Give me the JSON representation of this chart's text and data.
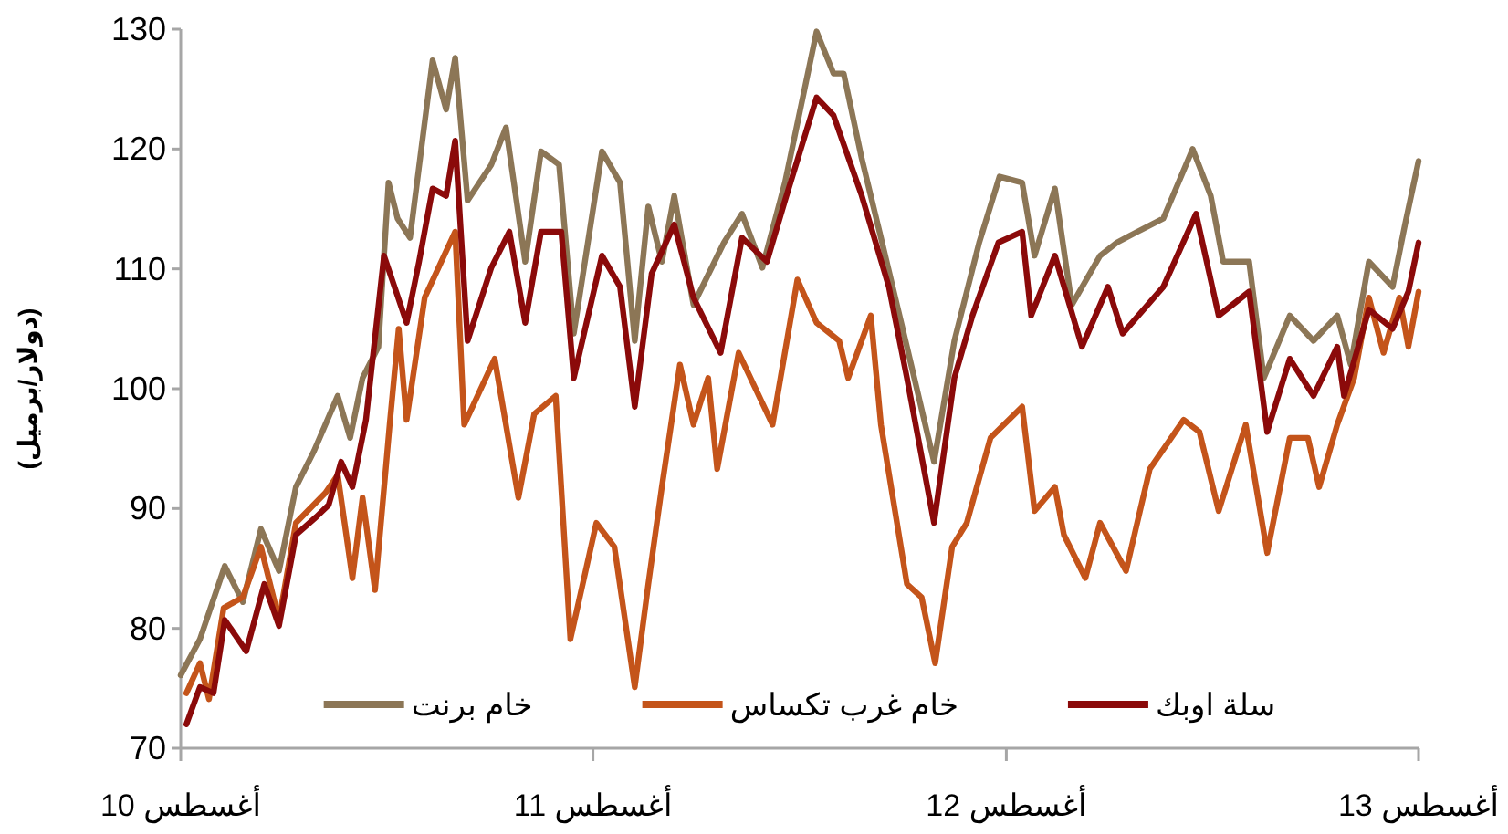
{
  "chart_data": {
    "type": "line",
    "ylabel": "(دولار/برميل)",
    "xlim": [
      "2010-08-01",
      "2013-08-01"
    ],
    "xticks": [
      {
        "value": "2010-08-01",
        "label": "أغسطس 10"
      },
      {
        "value": "2011-08-01",
        "label": "أغسطس 11"
      },
      {
        "value": "2012-08-01",
        "label": "أغسطس 12"
      },
      {
        "value": "2013-08-01",
        "label": "أغسطس 13"
      }
    ],
    "ylim": [
      70,
      130
    ],
    "yticks": [
      70,
      80,
      90,
      100,
      110,
      120,
      130
    ],
    "legend": "bottom",
    "series": [
      {
        "name": "خام برنت",
        "color": "#8c7656",
        "x": [
          "2010-08-01",
          "2010-08-18",
          "2010-09-09",
          "2010-09-25",
          "2010-10-11",
          "2010-10-27",
          "2010-11-11",
          "2010-11-27",
          "2010-12-18",
          "2010-12-29",
          "2011-01-09",
          "2011-01-23",
          "2011-02-01",
          "2011-02-09",
          "2011-02-20",
          "2011-03-12",
          "2011-03-24",
          "2011-04-01",
          "2011-04-12",
          "2011-05-03",
          "2011-05-16",
          "2011-06-02",
          "2011-06-16",
          "2011-07-02",
          "2011-07-15",
          "2011-08-09",
          "2011-08-25",
          "2011-09-07",
          "2011-09-19",
          "2011-10-01",
          "2011-10-12",
          "2011-10-29",
          "2011-11-25",
          "2011-12-11",
          "2011-12-29",
          "2012-01-18",
          "2012-02-15",
          "2012-03-01",
          "2012-03-10",
          "2012-03-26",
          "2012-04-12",
          "2012-05-05",
          "2012-05-29",
          "2012-06-16",
          "2012-07-08",
          "2012-07-26",
          "2012-08-15",
          "2012-08-26",
          "2012-09-13",
          "2012-09-28",
          "2012-10-23",
          "2012-11-07",
          "2012-11-25",
          "2012-12-18",
          "2013-01-13",
          "2013-01-29",
          "2013-02-09",
          "2013-03-04",
          "2013-03-17",
          "2013-04-09",
          "2013-04-30",
          "2013-05-21",
          "2013-06-02",
          "2013-06-18",
          "2013-07-09",
          "2013-07-20",
          "2013-08-01"
        ],
        "values": [
          76.1,
          79.1,
          85.2,
          82.2,
          88.3,
          84.8,
          91.8,
          94.8,
          99.4,
          95.9,
          100.9,
          103.5,
          117.2,
          114.2,
          112.6,
          127.4,
          123.3,
          127.6,
          115.7,
          118.7,
          121.8,
          110.6,
          119.8,
          118.7,
          104.6,
          119.8,
          117.2,
          104,
          115.2,
          110.6,
          116.1,
          107,
          112.2,
          114.6,
          110.1,
          117.2,
          129.8,
          126.3,
          126.3,
          119.2,
          112.6,
          103.5,
          93.9,
          104,
          112.2,
          117.7,
          117.2,
          111.1,
          116.7,
          107,
          111.1,
          112.2,
          113.1,
          114.2,
          120,
          116.1,
          110.6,
          110.6,
          100.9,
          106.1,
          104,
          106.1,
          102,
          110.6,
          108.5,
          113.7,
          119
        ]
      },
      {
        "name": "خام غرب  تكساس",
        "color": "#c4541a",
        "x": [
          "2010-08-06",
          "2010-08-18",
          "2010-08-26",
          "2010-09-08",
          "2010-09-25",
          "2010-10-11",
          "2010-10-27",
          "2010-11-11",
          "2010-12-07",
          "2010-12-18",
          "2010-12-31",
          "2011-01-09",
          "2011-01-20",
          "2011-02-02",
          "2011-02-10",
          "2011-02-17",
          "2011-03-05",
          "2011-04-01",
          "2011-04-09",
          "2011-05-06",
          "2011-05-27",
          "2011-06-10",
          "2011-06-29",
          "2011-07-12",
          "2011-08-04",
          "2011-08-20",
          "2011-09-07",
          "2011-09-19",
          "2011-10-01",
          "2011-10-17",
          "2011-10-29",
          "2011-11-11",
          "2011-11-19",
          "2011-12-08",
          "2012-01-07",
          "2012-01-29",
          "2012-02-15",
          "2012-03-06",
          "2012-03-14",
          "2012-04-03",
          "2012-04-12",
          "2012-05-05",
          "2012-05-18",
          "2012-05-30",
          "2012-06-14",
          "2012-06-27",
          "2012-07-18",
          "2012-08-15",
          "2012-08-26",
          "2012-09-13",
          "2012-09-21",
          "2012-10-10",
          "2012-10-23",
          "2012-11-15",
          "2012-12-06",
          "2013-01-05",
          "2013-01-19",
          "2013-02-05",
          "2013-03-01",
          "2013-03-20",
          "2013-04-09",
          "2013-04-25",
          "2013-05-05",
          "2013-05-21",
          "2013-06-05",
          "2013-06-18",
          "2013-07-01",
          "2013-07-15",
          "2013-07-23",
          "2013-08-01"
        ],
        "values": [
          74.6,
          77.1,
          74.1,
          81.7,
          82.6,
          86.8,
          80.7,
          88.8,
          91.3,
          92.8,
          84.2,
          90.9,
          83.2,
          97,
          105,
          97.4,
          107.6,
          113.1,
          97,
          102.5,
          90.9,
          97.9,
          99.4,
          79.1,
          88.8,
          86.8,
          75.1,
          83.7,
          91.8,
          102,
          97,
          100.9,
          93.3,
          103,
          97,
          109.1,
          105.5,
          104,
          100.9,
          106.1,
          97,
          83.7,
          82.6,
          77.1,
          86.8,
          88.8,
          95.9,
          98.5,
          89.8,
          91.8,
          87.8,
          84.2,
          88.8,
          84.8,
          93.3,
          97.4,
          96.4,
          89.8,
          97,
          86.3,
          95.9,
          95.9,
          91.8,
          97,
          100.9,
          107.6,
          103,
          107.6,
          103.5,
          108.1
        ]
      },
      {
        "name": "سلة اوبك",
        "color": "#8b0a0a",
        "x": [
          "2010-08-06",
          "2010-08-18",
          "2010-08-30",
          "2010-09-09",
          "2010-09-28",
          "2010-10-14",
          "2010-10-27",
          "2010-11-11",
          "2010-11-29",
          "2010-12-10",
          "2010-12-21",
          "2010-12-31",
          "2011-01-12",
          "2011-01-28",
          "2011-02-17",
          "2011-02-28",
          "2011-03-12",
          "2011-03-24",
          "2011-04-01",
          "2011-04-12",
          "2011-05-03",
          "2011-05-19",
          "2011-06-02",
          "2011-06-16",
          "2011-07-04",
          "2011-07-15",
          "2011-08-09",
          "2011-08-25",
          "2011-09-07",
          "2011-09-22",
          "2011-10-12",
          "2011-10-29",
          "2011-11-22",
          "2011-12-11",
          "2012-01-02",
          "2012-01-18",
          "2012-02-15",
          "2012-03-01",
          "2012-03-26",
          "2012-04-19",
          "2012-05-05",
          "2012-05-29",
          "2012-06-16",
          "2012-07-02",
          "2012-07-25",
          "2012-08-15",
          "2012-08-23",
          "2012-09-13",
          "2012-10-07",
          "2012-10-30",
          "2012-11-12",
          "2012-12-18",
          "2013-01-16",
          "2013-02-05",
          "2013-03-04",
          "2013-03-20",
          "2013-04-09",
          "2013-04-30",
          "2013-05-21",
          "2013-05-27",
          "2013-06-18",
          "2013-07-09",
          "2013-07-23",
          "2013-08-01"
        ],
        "values": [
          72,
          75.1,
          74.6,
          80.7,
          78.1,
          83.7,
          80.2,
          87.8,
          89.3,
          90.3,
          93.9,
          91.8,
          97.4,
          111.1,
          105.5,
          110.6,
          116.7,
          116.1,
          120.7,
          104,
          110.1,
          113.1,
          105.5,
          113.1,
          113.1,
          100.9,
          111.1,
          108.5,
          98.5,
          109.6,
          113.7,
          107.6,
          103,
          112.6,
          110.6,
          115.7,
          124.3,
          122.8,
          116.1,
          108.5,
          100.9,
          88.8,
          100.9,
          106.1,
          112.2,
          113.1,
          106.1,
          111.1,
          103.5,
          108.5,
          104.6,
          108.5,
          114.6,
          106.1,
          108.1,
          96.4,
          102.5,
          99.4,
          103.5,
          99.4,
          106.6,
          105,
          108.1,
          112.2
        ]
      }
    ]
  }
}
